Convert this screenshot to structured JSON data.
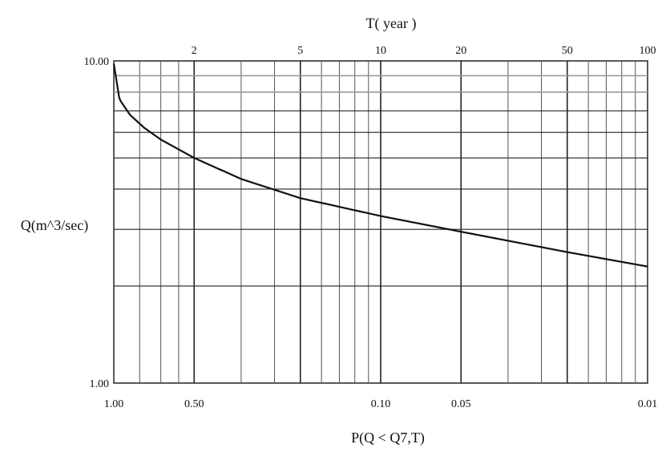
{
  "chart_data": {
    "type": "line",
    "title": "",
    "xlabel": "P(Q < Q7,T)",
    "x2label": "T( year )",
    "ylabel": "Q(m^3/sec)",
    "y_scale": "log",
    "ylim": [
      1.0,
      10.0
    ],
    "x_scale": "log_return_period",
    "x_bottom_ticks": [
      "1.00",
      "0.50",
      "0.10",
      "0.05",
      "0.01"
    ],
    "x_bottom_tick_values": [
      1.0,
      0.5,
      0.1,
      0.05,
      0.01
    ],
    "x_top_ticks": [
      "2",
      "5",
      "10",
      "20",
      "50",
      "100"
    ],
    "x_top_tick_values": [
      2,
      5,
      10,
      20,
      50,
      100
    ],
    "y_ticks": [
      "10.00",
      "1.00"
    ],
    "y_tick_values": [
      10.0,
      1.0
    ],
    "grid": true,
    "series": [
      {
        "x_T": [
          1.0,
          1.05,
          1.15,
          1.3,
          1.5,
          2.0,
          3.0,
          5.0,
          10.0,
          20.0,
          50.0,
          100.0
        ],
        "y": [
          9.8,
          7.6,
          6.8,
          6.2,
          5.7,
          5.0,
          4.3,
          3.75,
          3.3,
          2.95,
          2.55,
          2.3
        ]
      }
    ],
    "colors": {
      "curve": "#111111",
      "grid_dark": "#222222",
      "grid_light": "#9a9a9a"
    }
  }
}
